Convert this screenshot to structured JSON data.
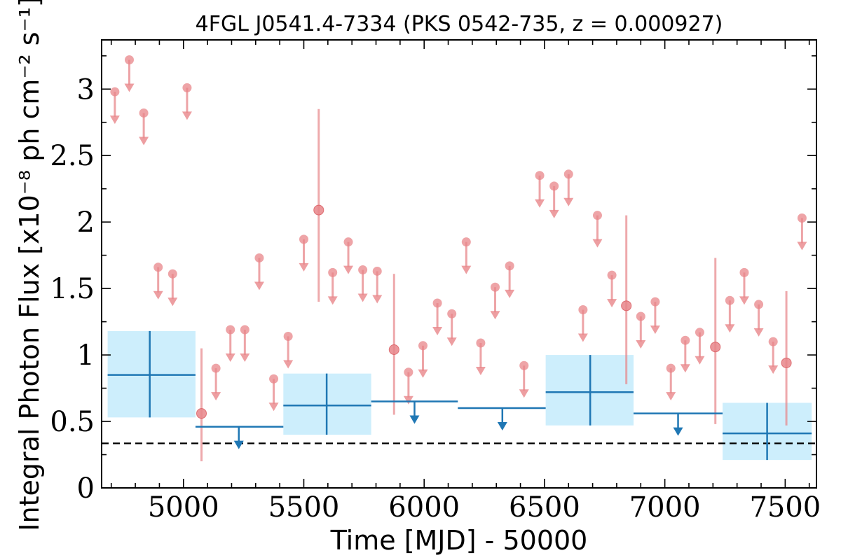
{
  "chart_data": {
    "type": "scatter",
    "title": "4FGL J0541.4-7334 (PKS 0542-735, z = 0.000927)",
    "xlabel": "Time [MJD] - 50000",
    "ylabel": "Integral Photon Flux [x10⁻⁸ ph cm⁻² s⁻¹]",
    "xlim": [
      4660,
      7630
    ],
    "ylim": [
      0,
      3.37
    ],
    "x_ticks": [
      "5000",
      "5500",
      "6000",
      "6500",
      "7000",
      "7500"
    ],
    "x_tick_values": [
      5000,
      5500,
      6000,
      6500,
      7000,
      7500
    ],
    "y_ticks": [
      "0",
      "0.5",
      "1",
      "1.5",
      "2",
      "2.5",
      "3"
    ],
    "y_tick_values": [
      0,
      0.5,
      1,
      1.5,
      2,
      2.5,
      3
    ],
    "reference_line": {
      "y": 0.335,
      "style": "dashed"
    },
    "colors": {
      "short_bins": "#e8868a",
      "long_bins": "#1f77b4",
      "long_bins_band": "#cdeefc",
      "reference": "#000000"
    },
    "series": [
      {
        "points": [
          {
            "x": 5075,
            "y": 0.56,
            "ylo": 0.2,
            "yhi": 1.05
          },
          {
            "x": 5562,
            "y": 2.09,
            "ylo": 1.4,
            "yhi": 2.85
          },
          {
            "x": 5875,
            "y": 1.04,
            "ylo": 0.55,
            "yhi": 1.61
          },
          {
            "x": 6840,
            "y": 1.37,
            "ylo": 0.78,
            "yhi": 2.05
          },
          {
            "x": 7210,
            "y": 1.06,
            "ylo": 0.48,
            "yhi": 1.73
          },
          {
            "x": 7505,
            "y": 0.94,
            "ylo": 0.47,
            "yhi": 1.48
          }
        ],
        "upper_limits": [
          {
            "x": 4715,
            "y": 2.98
          },
          {
            "x": 4775,
            "y": 3.22
          },
          {
            "x": 4835,
            "y": 2.82
          },
          {
            "x": 4895,
            "y": 1.66
          },
          {
            "x": 4955,
            "y": 1.61
          },
          {
            "x": 5015,
            "y": 3.01
          },
          {
            "x": 5135,
            "y": 0.9
          },
          {
            "x": 5195,
            "y": 1.19
          },
          {
            "x": 5255,
            "y": 1.19
          },
          {
            "x": 5315,
            "y": 1.73
          },
          {
            "x": 5375,
            "y": 0.82
          },
          {
            "x": 5435,
            "y": 1.14
          },
          {
            "x": 5500,
            "y": 1.87
          },
          {
            "x": 5620,
            "y": 1.62
          },
          {
            "x": 5685,
            "y": 1.85
          },
          {
            "x": 5745,
            "y": 1.64
          },
          {
            "x": 5805,
            "y": 1.63
          },
          {
            "x": 5935,
            "y": 0.87
          },
          {
            "x": 5995,
            "y": 1.07
          },
          {
            "x": 6055,
            "y": 1.39
          },
          {
            "x": 6115,
            "y": 1.31
          },
          {
            "x": 6175,
            "y": 1.85
          },
          {
            "x": 6235,
            "y": 1.09
          },
          {
            "x": 6295,
            "y": 1.51
          },
          {
            "x": 6355,
            "y": 1.67
          },
          {
            "x": 6415,
            "y": 0.92
          },
          {
            "x": 6480,
            "y": 2.35
          },
          {
            "x": 6540,
            "y": 2.27
          },
          {
            "x": 6600,
            "y": 2.36
          },
          {
            "x": 6660,
            "y": 1.34
          },
          {
            "x": 6720,
            "y": 2.05
          },
          {
            "x": 6780,
            "y": 1.6
          },
          {
            "x": 6900,
            "y": 1.29
          },
          {
            "x": 6960,
            "y": 1.4
          },
          {
            "x": 7025,
            "y": 0.9
          },
          {
            "x": 7085,
            "y": 1.11
          },
          {
            "x": 7145,
            "y": 1.17
          },
          {
            "x": 7270,
            "y": 1.41
          },
          {
            "x": 7330,
            "y": 1.62
          },
          {
            "x": 7390,
            "y": 1.38
          },
          {
            "x": 7450,
            "y": 1.1
          },
          {
            "x": 7570,
            "y": 2.03
          }
        ]
      },
      {
        "points": [
          {
            "x": 4860,
            "xlo": 4685,
            "xhi": 5050,
            "y": 0.85,
            "ylo": 0.53,
            "yhi": 1.18
          },
          {
            "x": 5595,
            "xlo": 5415,
            "xhi": 5780,
            "y": 0.62,
            "ylo": 0.4,
            "yhi": 0.86
          },
          {
            "x": 6690,
            "xlo": 6505,
            "xhi": 6870,
            "y": 0.72,
            "ylo": 0.47,
            "yhi": 1.0
          },
          {
            "x": 7425,
            "xlo": 7240,
            "xhi": 7610,
            "y": 0.41,
            "ylo": 0.21,
            "yhi": 0.64
          }
        ],
        "upper_limits": [
          {
            "x": 5230,
            "xlo": 5050,
            "xhi": 5415,
            "y": 0.46
          },
          {
            "x": 5960,
            "xlo": 5780,
            "xhi": 6140,
            "y": 0.65
          },
          {
            "x": 6325,
            "xlo": 6140,
            "xhi": 6505,
            "y": 0.6
          },
          {
            "x": 7055,
            "xlo": 6870,
            "xhi": 7240,
            "y": 0.56
          }
        ]
      }
    ]
  }
}
